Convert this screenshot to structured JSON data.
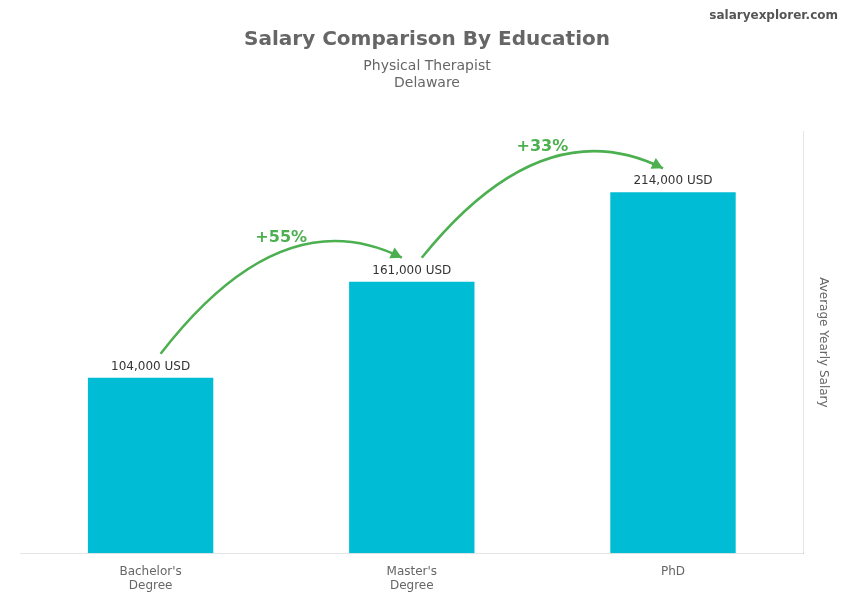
{
  "chart_data": {
    "type": "bar",
    "title": "Salary Comparison By Education",
    "subtitle": [
      "Physical Therapist",
      "Delaware"
    ],
    "ylabel": "Average Yearly Salary",
    "categories": [
      "Bachelor's\nDegree",
      "Master's\nDegree",
      "PhD"
    ],
    "values": [
      104000,
      161000,
      214000
    ],
    "value_labels": [
      "104,000 USD",
      "161,000 USD",
      "214,000 USD"
    ],
    "data_labels": true,
    "color": "#00bcd4",
    "ylim": [
      0,
      250000
    ],
    "grid": false,
    "tick_labels": "x",
    "annotations": [
      {
        "text": "+55%",
        "from": "Bachelor's\nDegree",
        "to": "Master's\nDegree"
      },
      {
        "text": "+33%",
        "from": "Master's\nDegree",
        "to": "PhD"
      },
      {
        "text": "salaryexplorer.com"
      }
    ]
  }
}
